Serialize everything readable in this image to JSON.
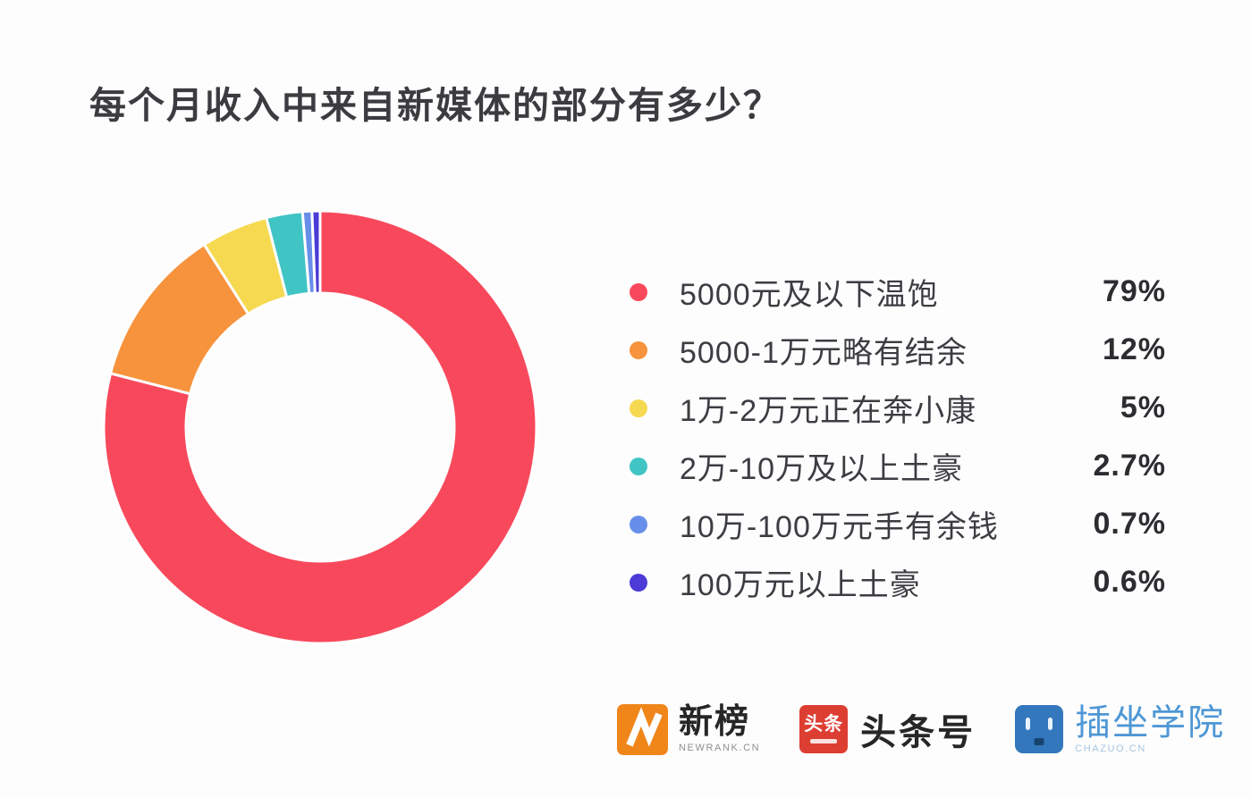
{
  "title": "每个月收入中来自新媒体的部分有多少？",
  "chart_data": {
    "type": "pie",
    "donut": true,
    "start_angle_deg": 0,
    "direction": "clockwise",
    "title": "每个月收入中来自新媒体的部分有多少？",
    "categories": [
      "5000元及以下温饱",
      "5000-1万元略有结余",
      "1万-2万元正在奔小康",
      "2万-10万及以上土豪",
      "10万-100万元手有余钱",
      "100万元以上土豪"
    ],
    "values": [
      79,
      12,
      5,
      2.7,
      0.7,
      0.6
    ],
    "value_labels": [
      "79%",
      "12%",
      "5%",
      "2.7%",
      "0.7%",
      "0.6%"
    ],
    "colors": [
      "#f8495c",
      "#f7933d",
      "#f6d950",
      "#41c4c4",
      "#678fe9",
      "#4c3bd6"
    ],
    "legend_position": "right",
    "segment_gap_color": "#ffffff"
  },
  "footer": {
    "newrank": {
      "name": "新榜",
      "subtext": "NEWRANK.CN",
      "icon_color": "#f08519"
    },
    "toutiao": {
      "name": "头条号",
      "icon_text": "头条",
      "icon_color": "#dd3e32"
    },
    "chazuo": {
      "name": "插坐学院",
      "subtext": "CHAZUO.CN",
      "icon_color": "#3377bc",
      "text_color": "#4e97d5"
    }
  },
  "colors": {
    "background": "#fdfdfd",
    "title_text": "#3b3b40",
    "legend_text": "#3c3c42",
    "value_text": "#2c2c31"
  }
}
